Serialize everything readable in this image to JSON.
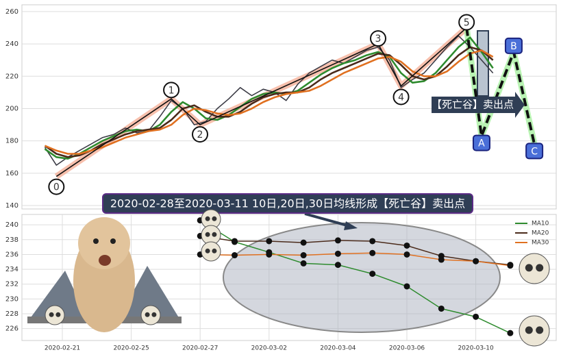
{
  "chart_data": [
    {
      "type": "line",
      "x": [
        0,
        1,
        2,
        3,
        4,
        5,
        6,
        7,
        8,
        9,
        10,
        11,
        12,
        13,
        14,
        15,
        16,
        17,
        18,
        19,
        20,
        21,
        22,
        23,
        24,
        25,
        26,
        27,
        28,
        29,
        30,
        31,
        32,
        33,
        34,
        35,
        36,
        37,
        38,
        39
      ],
      "xlim": [
        -2,
        44.5
      ],
      "ylim": [
        137.9,
        264.2
      ],
      "yticks": [
        140,
        160,
        180,
        200,
        220,
        240,
        260
      ],
      "grid": true,
      "series": [
        {
          "color": "#3c3c46",
          "values": [
            176,
            165,
            170,
            174,
            178,
            182,
            184,
            188,
            185,
            186,
            195,
            205,
            200,
            190,
            192,
            200,
            206,
            213,
            208,
            212,
            210,
            205,
            215,
            222,
            226,
            230,
            228,
            232,
            236,
            238,
            230,
            213,
            218,
            222,
            230,
            238,
            245,
            238,
            230,
            222
          ]
        },
        {
          "color": "#2e8b2e",
          "values": [
            175,
            170,
            169,
            172,
            176,
            180,
            183,
            186,
            187,
            186,
            190,
            198,
            204,
            200,
            194,
            193,
            196,
            201,
            206,
            209,
            210,
            209,
            211,
            216,
            221,
            225,
            228,
            230,
            233,
            235,
            232,
            222,
            216,
            217,
            222,
            230,
            238,
            244,
            235,
            225
          ]
        },
        {
          "color": "#4a2a1a",
          "values": [
            177,
            172,
            170,
            171,
            174,
            178,
            181,
            184,
            186,
            187,
            188,
            193,
            200,
            202,
            198,
            195,
            195,
            198,
            203,
            207,
            209,
            210,
            210,
            213,
            218,
            222,
            225,
            228,
            231,
            234,
            233,
            227,
            220,
            218,
            220,
            226,
            233,
            238,
            236,
            230
          ]
        },
        {
          "color": "#e07020",
          "values": [
            177,
            174,
            172,
            172,
            174,
            176,
            179,
            182,
            184,
            186,
            187,
            190,
            196,
            200,
            199,
            197,
            196,
            197,
            200,
            204,
            207,
            209,
            210,
            211,
            214,
            218,
            222,
            225,
            228,
            231,
            232,
            229,
            223,
            220,
            220,
            223,
            229,
            234,
            236,
            232
          ]
        }
      ],
      "waves": {
        "labels": [
          "0",
          "1",
          "2",
          "3",
          "4",
          "5",
          "A",
          "B",
          "C"
        ],
        "x": [
          1,
          11,
          13.5,
          29,
          31,
          36.7,
          38,
          40.8,
          42.6
        ],
        "values": [
          158,
          206,
          190,
          240,
          214,
          250,
          183,
          235,
          178
        ]
      },
      "annotation": "【死亡谷】卖出点"
    },
    {
      "type": "line",
      "title": "2020-02-28至2020-03-11 10日,20日,30日均线形成【死亡谷】卖出点",
      "categories": [
        "2020-02-21",
        null,
        "2020-02-25",
        null,
        "2020-02-27",
        null,
        "2020-03-02",
        null,
        "2020-03-04",
        null,
        "2020-03-06",
        null,
        "2020-03-10",
        null
      ],
      "ylim": [
        224.4,
        241.4
      ],
      "yticks": [
        226,
        228,
        230,
        232,
        234,
        236,
        238,
        240
      ],
      "grid": true,
      "legend": "upper right",
      "series": [
        {
          "name": "MA10",
          "color": "#2e8b2e",
          "values": [
            null,
            null,
            null,
            null,
            240.6,
            237.7,
            236.3,
            234.8,
            234.6,
            233.4,
            231.7,
            228.7,
            227.6,
            225.4
          ]
        },
        {
          "name": "MA20",
          "color": "#4a2a1a",
          "values": [
            null,
            null,
            null,
            null,
            238.5,
            237.8,
            237.8,
            237.6,
            237.9,
            237.8,
            237.2,
            235.8,
            235.1,
            234.6
          ]
        },
        {
          "name": "MA30",
          "color": "#e07020",
          "values": [
            null,
            null,
            null,
            null,
            236.0,
            235.9,
            236.0,
            235.9,
            236.1,
            236.2,
            236.0,
            235.3,
            235.1,
            234.5
          ]
        }
      ]
    }
  ]
}
